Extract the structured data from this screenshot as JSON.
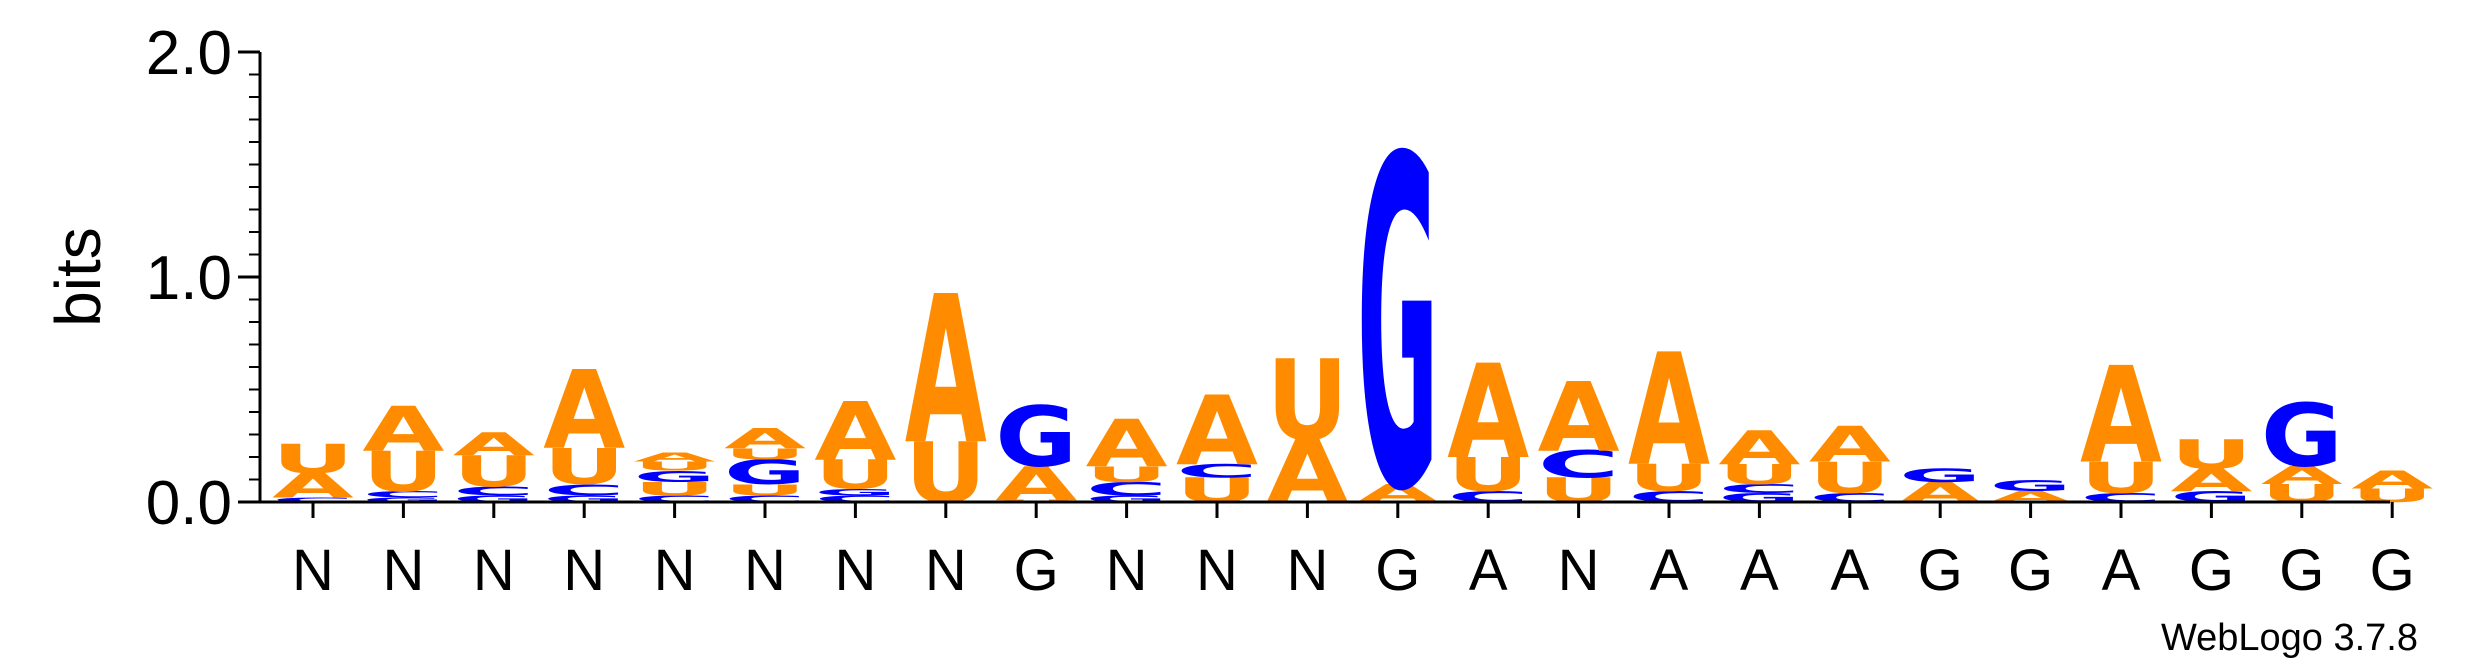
{
  "chart_data": {
    "type": "sequence_logo",
    "ylabel": "bits",
    "ylim": [
      0,
      2.0
    ],
    "yticks": [
      "0.0",
      "1.0",
      "2.0"
    ],
    "colors": {
      "A": "#FF8C00",
      "U": "#FF8C00",
      "G": "#0000FF",
      "C": "#0000FF"
    },
    "positions": [
      {
        "label": "N",
        "stack": [
          {
            "base": "C",
            "bits": 0.02
          },
          {
            "base": "A",
            "bits": 0.11
          },
          {
            "base": "U",
            "bits": 0.13
          }
        ]
      },
      {
        "label": "N",
        "stack": [
          {
            "base": "G",
            "bits": 0.02
          },
          {
            "base": "C",
            "bits": 0.03
          },
          {
            "base": "U",
            "bits": 0.18
          },
          {
            "base": "A",
            "bits": 0.2
          }
        ]
      },
      {
        "label": "N",
        "stack": [
          {
            "base": "G",
            "bits": 0.03
          },
          {
            "base": "C",
            "bits": 0.04
          },
          {
            "base": "U",
            "bits": 0.14
          },
          {
            "base": "A",
            "bits": 0.1
          }
        ]
      },
      {
        "label": "N",
        "stack": [
          {
            "base": "G",
            "bits": 0.03
          },
          {
            "base": "C",
            "bits": 0.05
          },
          {
            "base": "U",
            "bits": 0.16
          },
          {
            "base": "A",
            "bits": 0.35
          }
        ]
      },
      {
        "label": "N",
        "stack": [
          {
            "base": "C",
            "bits": 0.03
          },
          {
            "base": "U",
            "bits": 0.06
          },
          {
            "base": "G",
            "bits": 0.05
          },
          {
            "base": "U",
            "bits": 0.04
          },
          {
            "base": "A",
            "bits": 0.04
          }
        ]
      },
      {
        "label": "N",
        "stack": [
          {
            "base": "C",
            "bits": 0.03
          },
          {
            "base": "U",
            "bits": 0.05
          },
          {
            "base": "G",
            "bits": 0.11
          },
          {
            "base": "U",
            "bits": 0.05
          },
          {
            "base": "A",
            "bits": 0.09
          }
        ]
      },
      {
        "label": "N",
        "stack": [
          {
            "base": "C",
            "bits": 0.03
          },
          {
            "base": "G",
            "bits": 0.03
          },
          {
            "base": "U",
            "bits": 0.13
          },
          {
            "base": "A",
            "bits": 0.26
          }
        ]
      },
      {
        "label": "N",
        "stack": [
          {
            "base": "U",
            "bits": 0.27
          },
          {
            "base": "A",
            "bits": 0.66
          }
        ]
      },
      {
        "label": "G",
        "stack": [
          {
            "base": "U",
            "bits": 0.01
          },
          {
            "base": "A",
            "bits": 0.15
          },
          {
            "base": "G",
            "bits": 0.27
          }
        ]
      },
      {
        "label": "N",
        "stack": [
          {
            "base": "G",
            "bits": 0.03
          },
          {
            "base": "C",
            "bits": 0.06
          },
          {
            "base": "U",
            "bits": 0.07
          },
          {
            "base": "A",
            "bits": 0.21
          }
        ]
      },
      {
        "label": "N",
        "stack": [
          {
            "base": "U",
            "bits": 0.11
          },
          {
            "base": "C",
            "bits": 0.06
          },
          {
            "base": "A",
            "bits": 0.31
          }
        ]
      },
      {
        "label": "N",
        "stack": [
          {
            "base": "A",
            "bits": 0.28
          },
          {
            "base": "U",
            "bits": 0.36
          }
        ]
      },
      {
        "label": "G",
        "stack": [
          {
            "base": "A",
            "bits": 0.08
          },
          {
            "base": "G",
            "bits": 1.47
          }
        ]
      },
      {
        "label": "A",
        "stack": [
          {
            "base": "C",
            "bits": 0.05
          },
          {
            "base": "U",
            "bits": 0.15
          },
          {
            "base": "A",
            "bits": 0.42
          }
        ]
      },
      {
        "label": "N",
        "stack": [
          {
            "base": "U",
            "bits": 0.11
          },
          {
            "base": "C",
            "bits": 0.12
          },
          {
            "base": "A",
            "bits": 0.31
          }
        ]
      },
      {
        "label": "A",
        "stack": [
          {
            "base": "C",
            "bits": 0.05
          },
          {
            "base": "U",
            "bits": 0.12
          },
          {
            "base": "A",
            "bits": 0.5
          }
        ]
      },
      {
        "label": "A",
        "stack": [
          {
            "base": "G",
            "bits": 0.04
          },
          {
            "base": "C",
            "bits": 0.04
          },
          {
            "base": "U",
            "bits": 0.09
          },
          {
            "base": "A",
            "bits": 0.15
          }
        ]
      },
      {
        "label": "A",
        "stack": [
          {
            "base": "C",
            "bits": 0.04
          },
          {
            "base": "U",
            "bits": 0.14
          },
          {
            "base": "A",
            "bits": 0.16
          }
        ]
      },
      {
        "label": "G",
        "stack": [
          {
            "base": "A",
            "bits": 0.09
          },
          {
            "base": "G",
            "bits": 0.06
          }
        ]
      },
      {
        "label": "G",
        "stack": [
          {
            "base": "A",
            "bits": 0.05
          },
          {
            "base": "G",
            "bits": 0.05
          }
        ]
      },
      {
        "label": "A",
        "stack": [
          {
            "base": "C",
            "bits": 0.04
          },
          {
            "base": "U",
            "bits": 0.14
          },
          {
            "base": "A",
            "bits": 0.43
          }
        ]
      },
      {
        "label": "G",
        "stack": [
          {
            "base": "G",
            "bits": 0.05
          },
          {
            "base": "A",
            "bits": 0.1
          },
          {
            "base": "U",
            "bits": 0.13
          }
        ]
      },
      {
        "label": "G",
        "stack": [
          {
            "base": "U",
            "bits": 0.08
          },
          {
            "base": "A",
            "bits": 0.08
          },
          {
            "base": "G",
            "bits": 0.28
          }
        ]
      },
      {
        "label": "G",
        "stack": [
          {
            "base": "U",
            "bits": 0.06
          },
          {
            "base": "A",
            "bits": 0.08
          }
        ]
      }
    ]
  },
  "credit": "WebLogo 3.7.8"
}
